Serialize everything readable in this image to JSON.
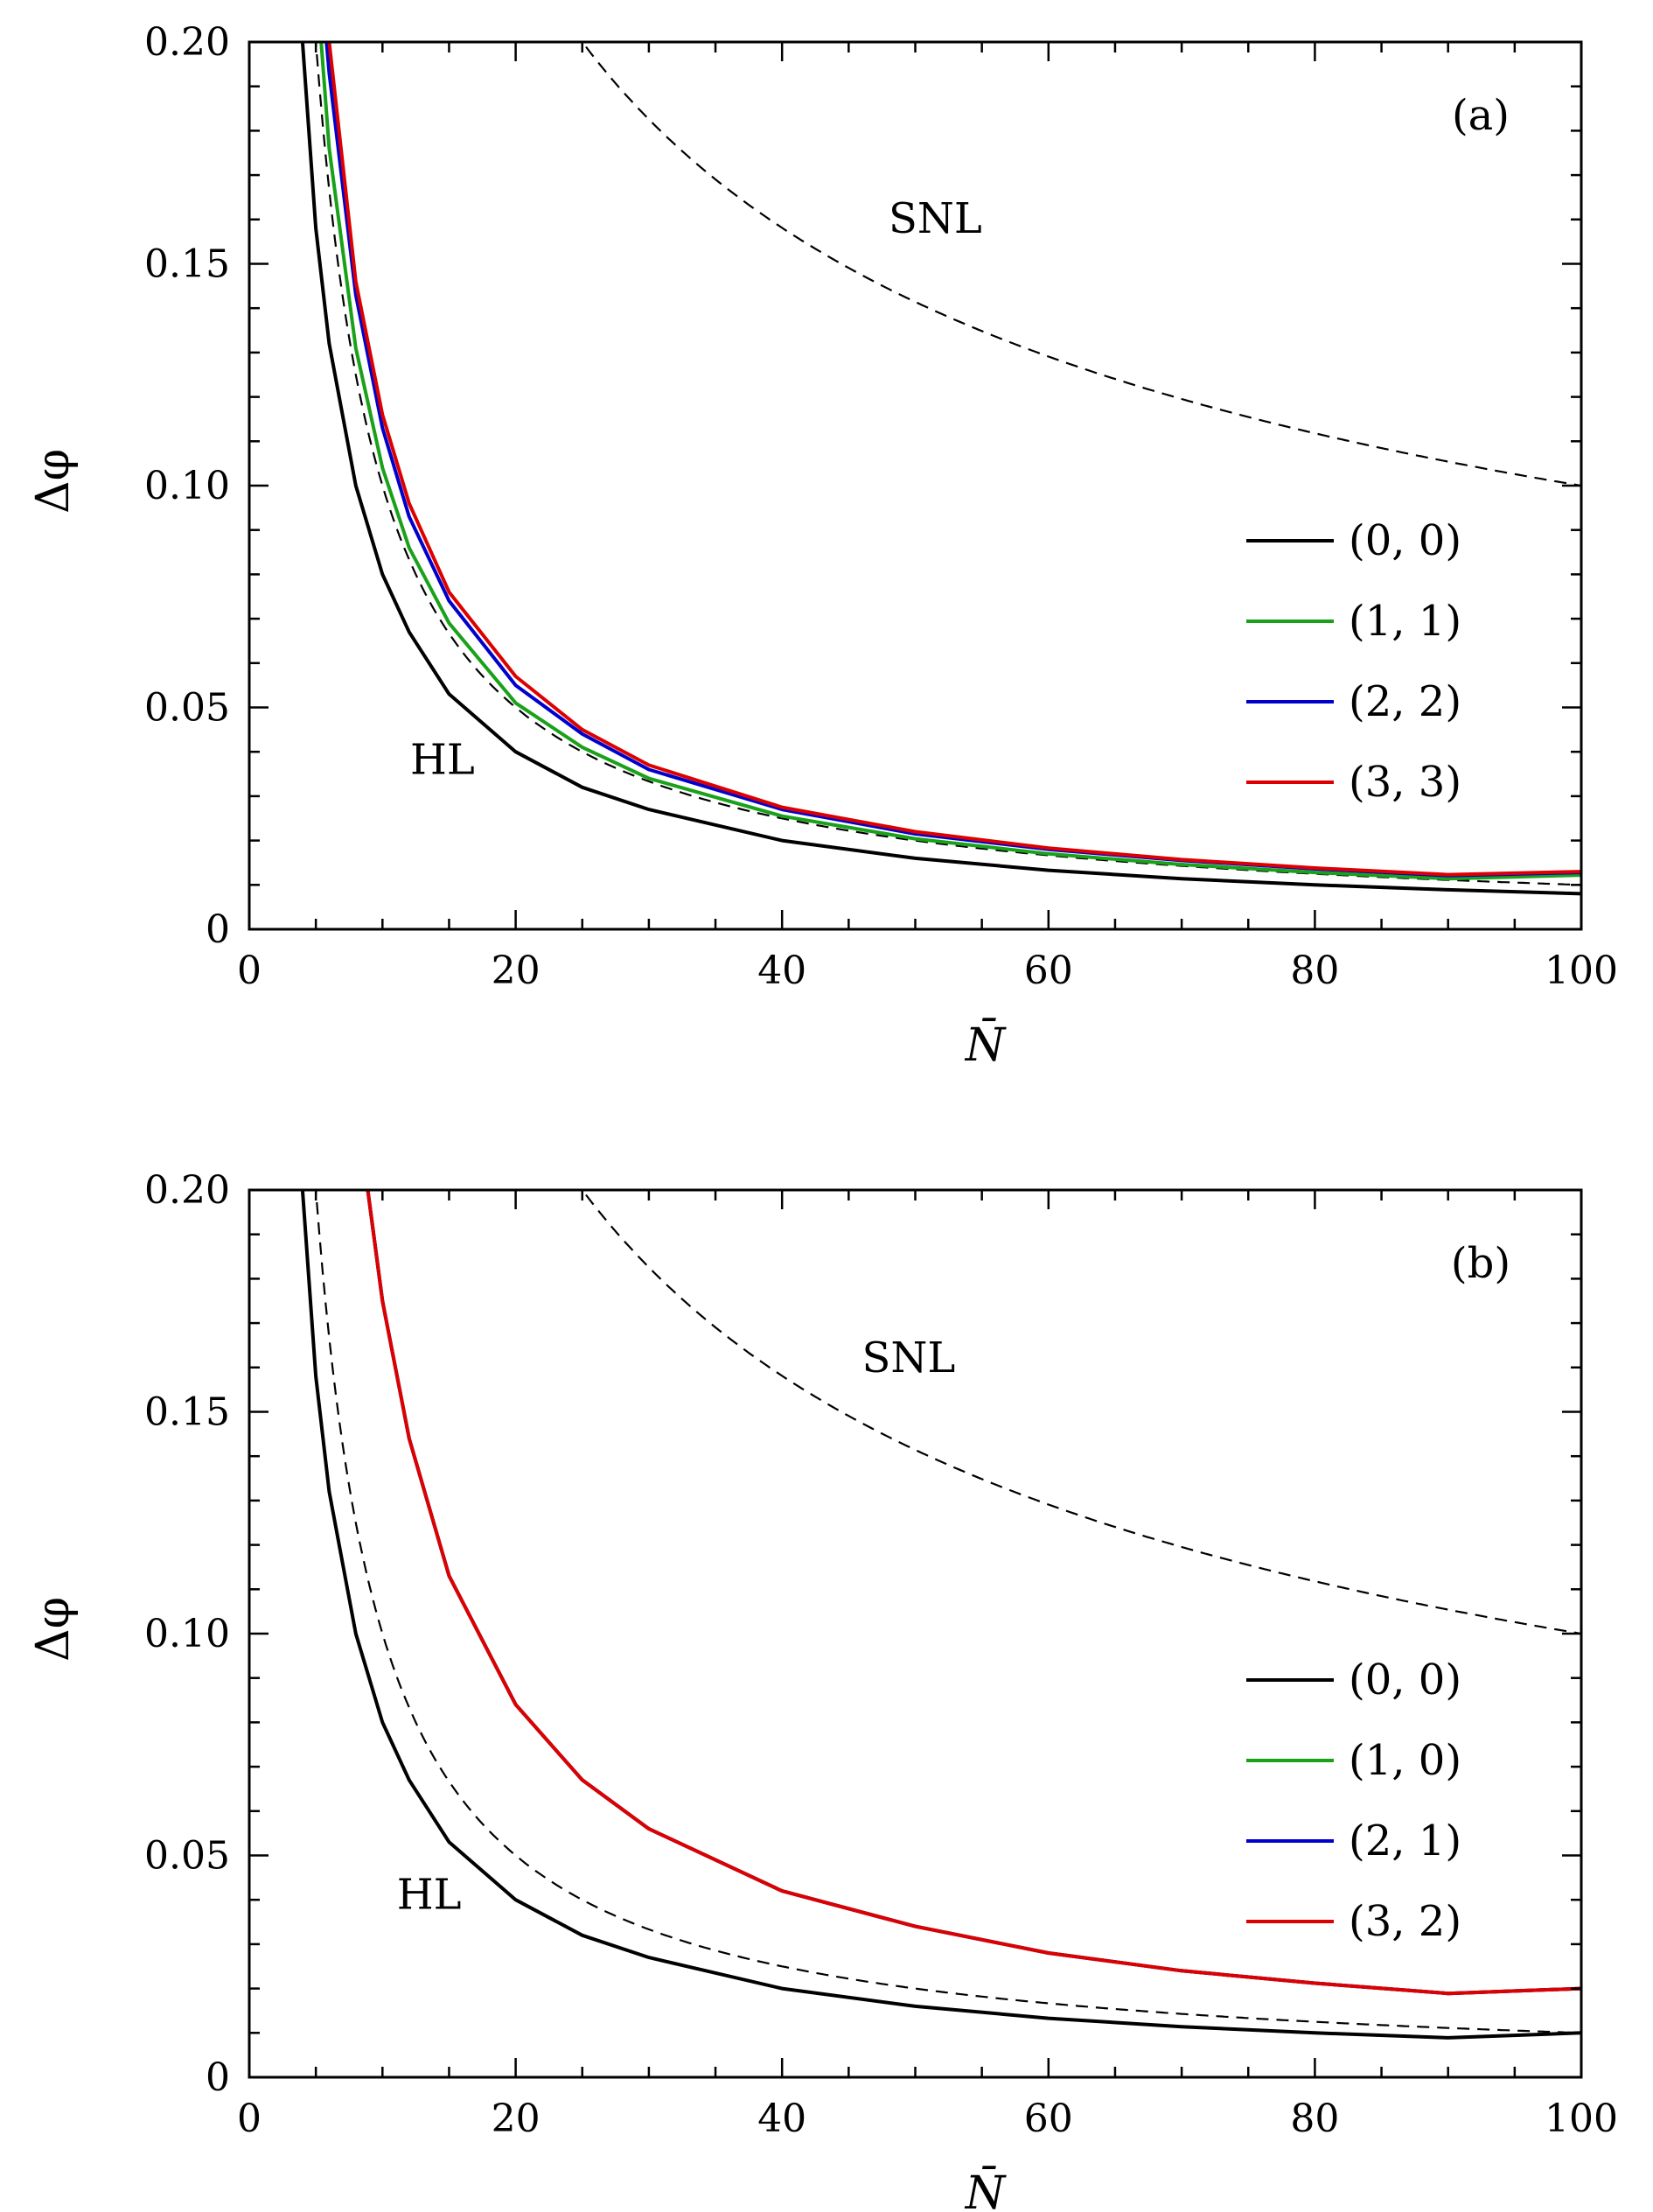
{
  "chart_data": [
    {
      "panel": "(a)",
      "type": "line",
      "xlabel": "N̄",
      "ylabel": "Δφ",
      "xlim": [
        0,
        100
      ],
      "ylim": [
        0,
        0.2
      ],
      "xticks": [
        "0",
        "20",
        "40",
        "60",
        "80",
        "100"
      ],
      "yticks": [
        "0",
        "0.05",
        "0.10",
        "0.15",
        "0.20"
      ],
      "grid": false,
      "legend_position": "right",
      "annotations": [
        {
          "text": "SNL",
          "x": 51.5,
          "y": 0.157
        },
        {
          "text": "HL",
          "x": 14.5,
          "y": 0.035
        }
      ],
      "reference_curves": [
        {
          "name": "SNL",
          "formula": "1/sqrt(N)",
          "style": "dashed",
          "color": "#000000"
        },
        {
          "name": "HL",
          "formula": "1/N",
          "style": "dashed",
          "color": "#000000"
        }
      ],
      "series": [
        {
          "name": "(0, 0)",
          "color": "#000000",
          "x": [
            4,
            5,
            6,
            8,
            10,
            12,
            15,
            20,
            25,
            30,
            40,
            50,
            60,
            70,
            80,
            90,
            100
          ],
          "y": [
            0.2,
            0.158,
            0.132,
            0.1,
            0.08,
            0.067,
            0.053,
            0.04,
            0.032,
            0.027,
            0.02,
            0.016,
            0.0133,
            0.0114,
            0.01,
            0.0089,
            0.008
          ]
        },
        {
          "name": "(1, 1)",
          "color": "#1aa11a",
          "x": [
            5.4,
            6,
            8,
            10,
            12,
            15,
            20,
            25,
            30,
            40,
            50,
            60,
            70,
            80,
            90,
            100
          ],
          "y": [
            0.2,
            0.176,
            0.131,
            0.104,
            0.086,
            0.069,
            0.051,
            0.041,
            0.034,
            0.0255,
            0.0204,
            0.017,
            0.0146,
            0.0128,
            0.0114,
            0.0122
          ]
        },
        {
          "name": "(2, 2)",
          "color": "#0000cc",
          "x": [
            5.8,
            6,
            8,
            10,
            12,
            15,
            20,
            25,
            30,
            40,
            50,
            60,
            70,
            80,
            90,
            100
          ],
          "y": [
            0.2,
            0.193,
            0.143,
            0.113,
            0.093,
            0.074,
            0.055,
            0.044,
            0.036,
            0.027,
            0.0215,
            0.018,
            0.0155,
            0.0136,
            0.0121,
            0.0128
          ]
        },
        {
          "name": "(3, 3)",
          "color": "#dd0000",
          "x": [
            6,
            8,
            10,
            12,
            15,
            20,
            25,
            30,
            40,
            50,
            60,
            70,
            80,
            90,
            100
          ],
          "y": [
            0.2,
            0.146,
            0.116,
            0.096,
            0.076,
            0.057,
            0.045,
            0.037,
            0.0275,
            0.022,
            0.0183,
            0.0157,
            0.0138,
            0.0123,
            0.013
          ]
        }
      ],
      "legend": [
        "(0, 0)",
        "(1, 1)",
        "(2, 2)",
        "(3, 3)"
      ]
    },
    {
      "panel": "(b)",
      "type": "line",
      "xlabel": "N̄",
      "ylabel": "Δφ",
      "xlim": [
        0,
        100
      ],
      "ylim": [
        0,
        0.2
      ],
      "xticks": [
        "0",
        "20",
        "40",
        "60",
        "80",
        "100"
      ],
      "yticks": [
        "0",
        "0.05",
        "0.10",
        "0.15",
        "0.20"
      ],
      "grid": false,
      "legend_position": "right",
      "annotations": [
        {
          "text": "SNL",
          "x": 49.5,
          "y": 0.159
        },
        {
          "text": "HL",
          "x": 13.5,
          "y": 0.038
        }
      ],
      "reference_curves": [
        {
          "name": "SNL",
          "formula": "1/sqrt(N)",
          "style": "dashed",
          "color": "#000000"
        },
        {
          "name": "HL",
          "formula": "1/N",
          "style": "dashed",
          "color": "#000000"
        }
      ],
      "series": [
        {
          "name": "(0, 0)",
          "color": "#000000",
          "x": [
            4,
            5,
            6,
            8,
            10,
            12,
            15,
            20,
            25,
            30,
            40,
            50,
            60,
            70,
            80,
            90,
            100
          ],
          "y": [
            0.2,
            0.158,
            0.132,
            0.1,
            0.08,
            0.067,
            0.053,
            0.04,
            0.032,
            0.027,
            0.02,
            0.016,
            0.0133,
            0.0114,
            0.01,
            0.0089,
            0.01
          ]
        },
        {
          "name": "(1, 0)",
          "color": "#1aa11a",
          "x": [
            8.9,
            10,
            12,
            15,
            20,
            25,
            30,
            40,
            50,
            60,
            70,
            80,
            90,
            100
          ],
          "y": [
            0.2,
            0.175,
            0.144,
            0.113,
            0.084,
            0.067,
            0.056,
            0.042,
            0.034,
            0.028,
            0.024,
            0.0212,
            0.0189,
            0.02
          ]
        },
        {
          "name": "(2, 1)",
          "color": "#0000cc",
          "x": [
            8.9,
            10,
            12,
            15,
            20,
            25,
            30,
            40,
            50,
            60,
            70,
            80,
            90,
            100
          ],
          "y": [
            0.2,
            0.175,
            0.144,
            0.113,
            0.084,
            0.067,
            0.056,
            0.042,
            0.034,
            0.028,
            0.024,
            0.0212,
            0.0189,
            0.02
          ]
        },
        {
          "name": "(3, 2)",
          "color": "#dd0000",
          "x": [
            8.9,
            10,
            12,
            15,
            20,
            25,
            30,
            40,
            50,
            60,
            70,
            80,
            90,
            100
          ],
          "y": [
            0.2,
            0.175,
            0.144,
            0.113,
            0.084,
            0.067,
            0.056,
            0.042,
            0.034,
            0.028,
            0.024,
            0.0212,
            0.0189,
            0.02
          ]
        }
      ],
      "legend": [
        "(0, 0)",
        "(1, 0)",
        "(2, 1)",
        "(3, 2)"
      ]
    }
  ]
}
